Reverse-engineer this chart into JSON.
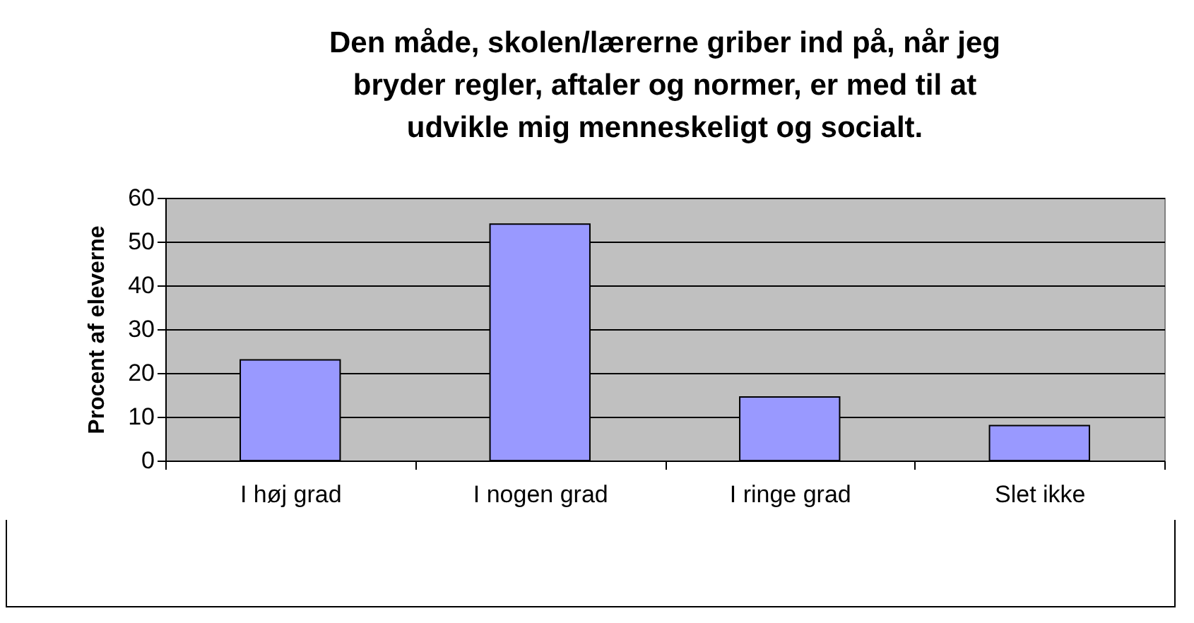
{
  "chart_data": {
    "type": "bar",
    "title": "Den måde, skolen/lærerne griber ind på, når jeg bryder regler, aftaler og normer, er med til at udvikle mig menneskeligt og socialt.",
    "ylabel": "Procent af eleverne",
    "categories": [
      "I høj grad",
      "I nogen grad",
      "I ringe grad",
      "Slet ikke"
    ],
    "values": [
      23,
      54,
      14.5,
      8
    ],
    "color": "#9999ff",
    "ylim": [
      0,
      60
    ],
    "yticks": [
      0,
      10,
      20,
      30,
      40,
      50,
      60
    ],
    "grid": "y"
  }
}
